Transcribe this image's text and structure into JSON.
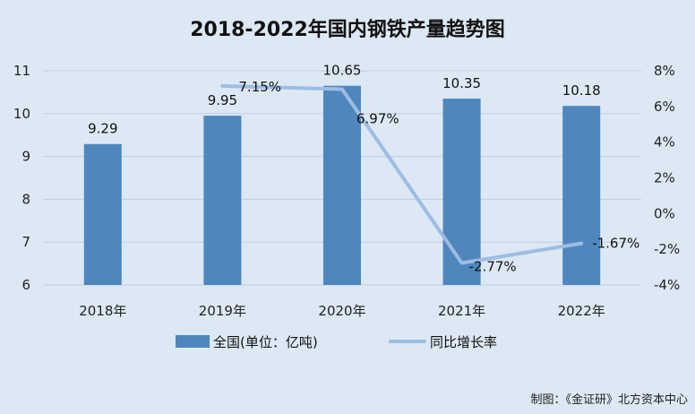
{
  "chart_data": {
    "type": "bar",
    "title": "2018-2022年国内钢铁产量趋势图",
    "categories": [
      "2018年",
      "2019年",
      "2020年",
      "2021年",
      "2022年"
    ],
    "series": [
      {
        "name": "全国(单位：亿吨)",
        "type": "bar",
        "axis": "left",
        "values": [
          9.29,
          9.95,
          10.65,
          10.35,
          10.18
        ],
        "labels": [
          "9.29",
          "9.95",
          "10.65",
          "10.35",
          "10.18"
        ],
        "color": "#4f86be"
      },
      {
        "name": "同比增长率",
        "type": "line",
        "axis": "right",
        "values": [
          null,
          7.15,
          6.97,
          -2.77,
          -1.67
        ],
        "labels": [
          "",
          "7.15%",
          "6.97%",
          "-2.77%",
          "-1.67%"
        ],
        "color": "#9dbde3"
      }
    ],
    "y_left": {
      "ylim": [
        6,
        11
      ],
      "ticks": [
        "6",
        "7",
        "8",
        "9",
        "10",
        "11"
      ]
    },
    "y_right": {
      "ylim": [
        -4,
        8
      ],
      "ticks": [
        "-4%",
        "-2%",
        "0%",
        "2%",
        "4%",
        "6%",
        "8%"
      ]
    },
    "grid": true,
    "legend_position": "bottom"
  },
  "credit": "制图：《金证研》北方资本中心"
}
